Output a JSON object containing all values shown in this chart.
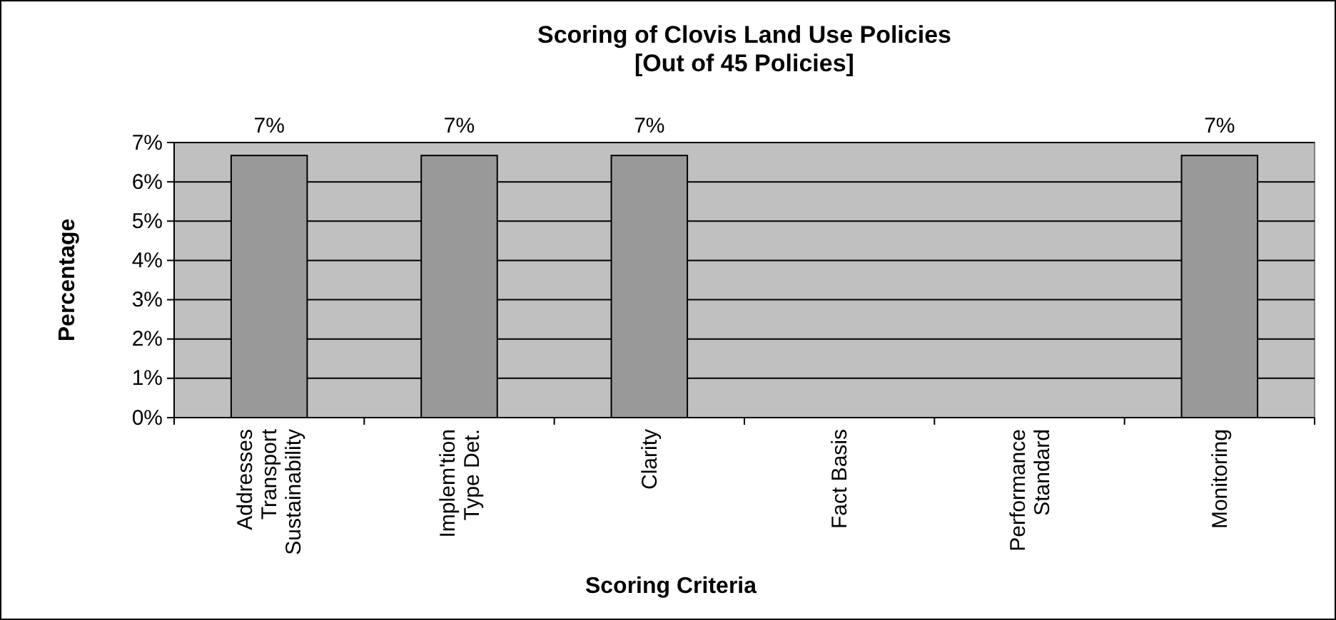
{
  "chart_data": {
    "type": "bar",
    "title": "Scoring of Clovis Land Use Policies\n[Out of 45 Policies]",
    "xlabel": "Scoring Criteria",
    "ylabel": "Percentage",
    "categories": [
      "Addresses Transport Sustainability",
      "Implem'tion Type Det.",
      "Clarity",
      "Fact Basis",
      "Performance Standard",
      "Monitoring"
    ],
    "values": [
      6.67,
      6.67,
      6.67,
      0,
      0,
      6.67
    ],
    "value_labels": [
      "7%",
      "7%",
      "7%",
      null,
      null,
      "7%"
    ],
    "color": "#999999",
    "ylim": [
      0,
      7
    ],
    "yticks": [
      {
        "value": 0,
        "label": "0%"
      },
      {
        "value": 1,
        "label": "1%"
      },
      {
        "value": 2,
        "label": "2%"
      },
      {
        "value": 3,
        "label": "3%"
      },
      {
        "value": 4,
        "label": "4%"
      },
      {
        "value": 5,
        "label": "5%"
      },
      {
        "value": 6,
        "label": "6%"
      },
      {
        "value": 7,
        "label": "7%"
      }
    ],
    "grid": "y"
  }
}
